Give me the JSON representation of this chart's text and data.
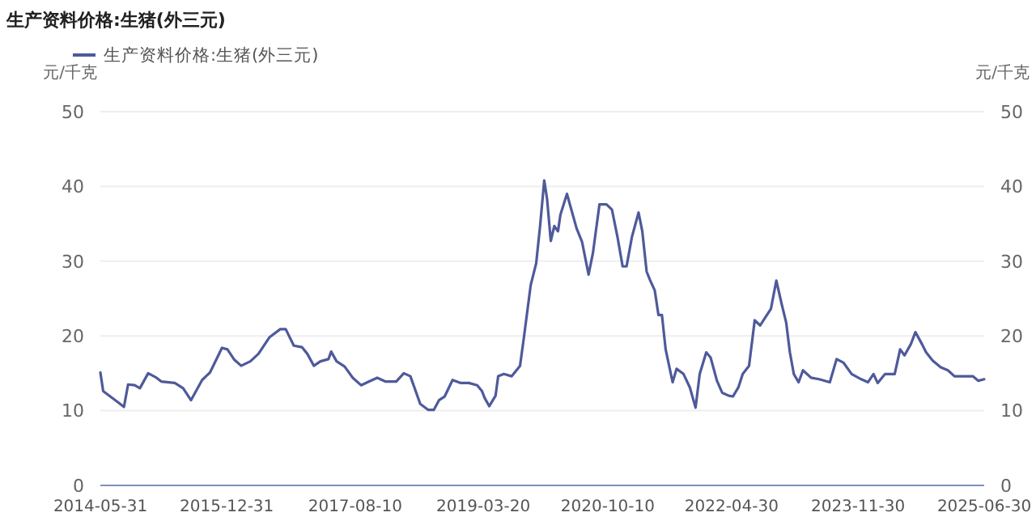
{
  "chart_data": {
    "type": "line",
    "title": "生产资料价格:生猪(外三元)",
    "ylabel": "元/千克",
    "y2label": "元/千克",
    "legend": "top left",
    "grid": "y",
    "x": [
      "2014-05-31",
      "2014-06-13",
      "2014-07-15",
      "2014-08-21",
      "2014-09-16",
      "2014-10-05",
      "2014-11-04",
      "2014-11-28",
      "2015-01-05",
      "2015-02-12",
      "2015-03-06",
      "2015-05-07",
      "2015-06-14",
      "2015-07-20",
      "2015-09-09",
      "2015-10-15",
      "2015-12-09",
      "2016-01-03",
      "2016-02-04",
      "2016-03-06",
      "2016-04-17",
      "2016-05-24",
      "2016-07-13",
      "2016-09-01",
      "2016-09-26",
      "2016-11-02",
      "2016-12-09",
      "2017-01-03",
      "2017-02-02",
      "2017-03-04",
      "2017-04-10",
      "2017-04-22",
      "2017-05-17",
      "2017-06-23",
      "2017-07-30",
      "2017-09-06",
      "2017-10-13",
      "2017-11-19",
      "2017-12-26",
      "2018-02-14",
      "2018-03-21",
      "2018-04-20",
      "2018-06-04",
      "2018-07-11",
      "2018-08-05",
      "2018-08-29",
      "2018-09-24",
      "2018-10-30",
      "2018-12-07",
      "2019-01-13",
      "2019-02-20",
      "2019-03-14",
      "2019-03-26",
      "2019-04-16",
      "2019-05-15",
      "2019-05-27",
      "2019-06-22",
      "2019-07-28",
      "2019-09-04",
      "2019-09-21",
      "2019-10-23",
      "2019-11-17",
      "2019-12-05",
      "2019-12-24",
      "2020-01-06",
      "2020-01-23",
      "2020-02-08",
      "2020-02-25",
      "2020-03-07",
      "2020-04-06",
      "2020-04-26",
      "2020-05-20",
      "2020-06-14",
      "2020-07-14",
      "2020-08-03",
      "2020-09-02",
      "2020-10-04",
      "2020-10-29",
      "2020-11-23",
      "2020-12-17",
      "2021-01-04",
      "2021-01-29",
      "2021-02-28",
      "2021-03-17",
      "2021-04-06",
      "2021-04-21",
      "2021-05-13",
      "2021-05-30",
      "2021-06-15",
      "2021-07-02",
      "2021-08-03",
      "2021-08-21",
      "2021-09-22",
      "2021-10-21",
      "2021-11-16",
      "2021-12-05",
      "2022-01-04",
      "2022-01-24",
      "2022-02-22",
      "2022-03-18",
      "2022-04-17",
      "2022-05-06",
      "2022-05-31",
      "2022-06-20",
      "2022-07-19",
      "2022-08-14",
      "2022-09-08",
      "2022-10-02",
      "2022-10-27",
      "2022-11-21",
      "2022-12-15",
      "2023-01-05",
      "2023-01-22",
      "2023-02-09",
      "2023-03-03",
      "2023-03-23",
      "2023-04-29",
      "2023-06-05",
      "2023-07-24",
      "2023-08-24",
      "2023-09-25",
      "2023-11-01",
      "2023-12-15",
      "2024-01-15",
      "2024-02-09",
      "2024-02-28",
      "2024-04-02",
      "2024-05-16",
      "2024-06-10",
      "2024-06-30",
      "2024-07-29",
      "2024-08-19",
      "2024-09-18",
      "2024-10-07",
      "2024-11-06",
      "2024-12-13",
      "2025-01-15",
      "2025-02-14",
      "2025-04-03",
      "2025-05-09",
      "2025-06-03",
      "2025-06-30"
    ],
    "series": [
      {
        "name": "生产资料价格:生猪(外三元)",
        "color": "#4e5a9a",
        "values": [
          15.1,
          12.6,
          11.9,
          11.1,
          10.5,
          13.5,
          13.4,
          13.0,
          15.0,
          14.4,
          13.9,
          13.7,
          13.0,
          11.4,
          14.1,
          15.1,
          18.4,
          18.2,
          16.8,
          16.0,
          16.6,
          17.6,
          19.8,
          20.9,
          20.9,
          18.7,
          18.5,
          17.6,
          16.0,
          16.6,
          16.9,
          17.9,
          16.6,
          15.9,
          14.4,
          13.4,
          13.9,
          14.4,
          13.9,
          13.9,
          15.0,
          14.6,
          10.9,
          10.1,
          10.1,
          11.4,
          11.9,
          14.1,
          13.7,
          13.7,
          13.4,
          12.6,
          11.7,
          10.6,
          12.0,
          14.6,
          14.9,
          14.6,
          16.0,
          19.6,
          26.8,
          29.7,
          34.7,
          40.8,
          38.3,
          32.7,
          34.7,
          34.0,
          36.2,
          39.0,
          36.9,
          34.4,
          32.6,
          28.2,
          31.1,
          37.6,
          37.6,
          36.9,
          33.3,
          29.3,
          29.3,
          33.3,
          36.5,
          34.0,
          28.6,
          27.5,
          26.1,
          22.8,
          22.8,
          18.2,
          13.8,
          15.6,
          14.9,
          13.1,
          10.4,
          14.9,
          17.8,
          17.1,
          14.0,
          12.4,
          12.0,
          11.9,
          13.1,
          14.9,
          16.0,
          22.1,
          21.4,
          22.5,
          23.6,
          27.4,
          24.3,
          21.8,
          17.8,
          14.9,
          13.8,
          15.4,
          14.4,
          14.2,
          13.8,
          16.9,
          16.4,
          14.9,
          14.2,
          13.8,
          14.9,
          13.7,
          14.9,
          14.9,
          18.2,
          17.4,
          18.9,
          20.5,
          18.9,
          17.8,
          16.7,
          15.8,
          15.4,
          14.6,
          14.6,
          14.6,
          14.0,
          14.2
        ]
      }
    ],
    "xlim": [
      "2014-05-31",
      "2025-06-30"
    ],
    "xticks": [
      {
        "value": "2014-05-31",
        "label": "2014-05-31"
      },
      {
        "value": "2015-12-31",
        "label": "2015-12-31"
      },
      {
        "value": "2017-08-10",
        "label": "2017-08-10"
      },
      {
        "value": "2019-03-20",
        "label": "2019-03-20"
      },
      {
        "value": "2020-10-10",
        "label": "2020-10-10"
      },
      {
        "value": "2022-04-30",
        "label": "2022-04-30"
      },
      {
        "value": "2023-11-30",
        "label": "2023-11-30"
      },
      {
        "value": "2025-06-30",
        "label": "2025-06-30"
      }
    ],
    "ylim": [
      0,
      50
    ],
    "yticks": [
      0,
      10,
      20,
      30,
      40,
      50
    ],
    "y2lim": [
      0,
      50
    ],
    "y2ticks": [
      0,
      10,
      20,
      30,
      40,
      50
    ]
  }
}
